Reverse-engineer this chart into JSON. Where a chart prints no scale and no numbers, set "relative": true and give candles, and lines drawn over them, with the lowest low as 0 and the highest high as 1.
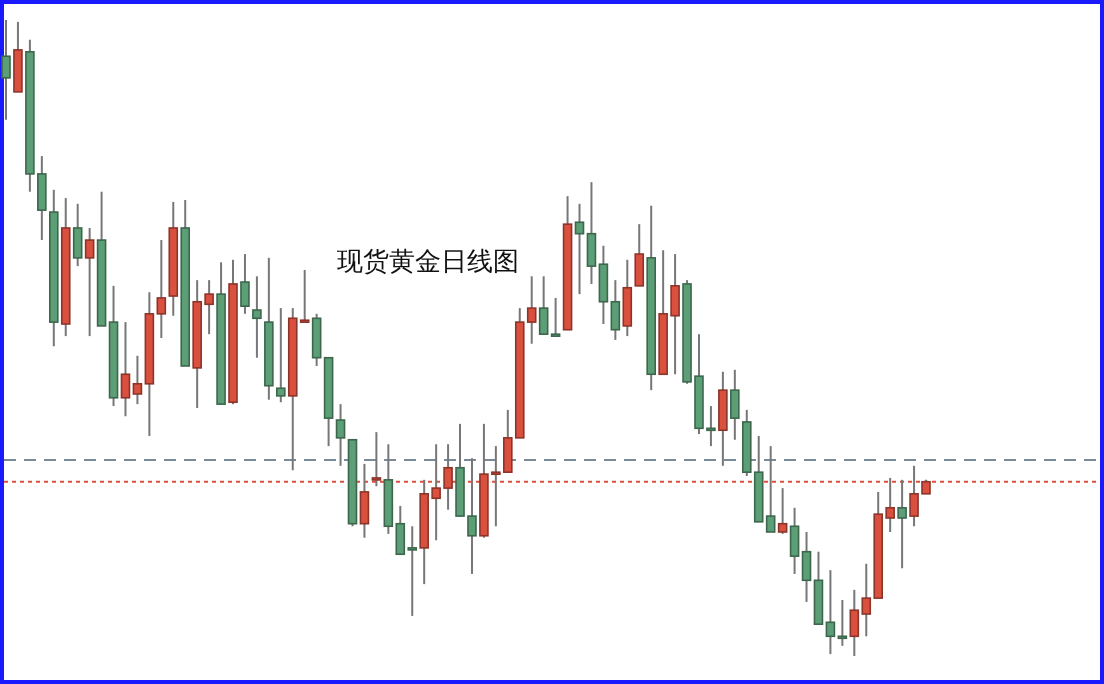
{
  "chart_data": {
    "type": "candlestick",
    "title": "现货黄金日线图",
    "relative": true,
    "categories": [
      null,
      null,
      null,
      null,
      null,
      null,
      null,
      null,
      null,
      null,
      null,
      null,
      null,
      null,
      null,
      null,
      null,
      null,
      null,
      null,
      null,
      null,
      null,
      null,
      null,
      null,
      null,
      null,
      null,
      null,
      null,
      null,
      null,
      null,
      null,
      null,
      null,
      null,
      null,
      null,
      null,
      null,
      null,
      null,
      null,
      null,
      null,
      null,
      null,
      null,
      null,
      null,
      null,
      null,
      null,
      null,
      null,
      null,
      null,
      null,
      null,
      null,
      null,
      null,
      null,
      null,
      null,
      null,
      null,
      null,
      null,
      null,
      null,
      null,
      null,
      null,
      null,
      null
    ],
    "ohlc": [
      [
        0.943,
        1,
        0.843,
        0.909
      ],
      [
        0.887,
        0.997,
        0.887,
        0.953
      ],
      [
        0.95,
        0.969,
        0.73,
        0.758
      ],
      [
        0.758,
        0.786,
        0.654,
        0.701
      ],
      [
        0.698,
        0.733,
        0.487,
        0.525
      ],
      [
        0.522,
        0.72,
        0.503,
        0.673
      ],
      [
        0.673,
        0.711,
        0.613,
        0.626
      ],
      [
        0.626,
        0.673,
        0.503,
        0.654
      ],
      [
        0.654,
        0.73,
        0.519,
        0.519
      ],
      [
        0.525,
        0.582,
        0.393,
        0.406
      ],
      [
        0.406,
        0.525,
        0.377,
        0.443
      ],
      [
        0.412,
        0.472,
        0.396,
        0.428
      ],
      [
        0.428,
        0.572,
        0.346,
        0.538
      ],
      [
        0.538,
        0.654,
        0.5,
        0.563
      ],
      [
        0.566,
        0.714,
        0.535,
        0.673
      ],
      [
        0.673,
        0.717,
        0.456,
        0.456
      ],
      [
        0.453,
        0.591,
        0.39,
        0.557
      ],
      [
        0.553,
        0.591,
        0.506,
        0.569
      ],
      [
        0.569,
        0.619,
        0.396,
        0.396
      ],
      [
        0.399,
        0.623,
        0.396,
        0.585
      ],
      [
        0.588,
        0.632,
        0.538,
        0.55
      ],
      [
        0.544,
        0.597,
        0.469,
        0.531
      ],
      [
        0.525,
        0.626,
        0.403,
        0.425
      ],
      [
        0.421,
        0.547,
        0.399,
        0.409
      ],
      [
        0.409,
        0.547,
        0.292,
        0.531
      ],
      [
        0.528,
        0.607,
        0.525,
        0.528
      ],
      [
        0.531,
        0.538,
        0.456,
        0.469
      ],
      [
        0.469,
        0.469,
        0.33,
        0.374
      ],
      [
        0.371,
        0.396,
        0.299,
        0.343
      ],
      [
        0.34,
        0.34,
        0.204,
        0.208
      ],
      [
        0.208,
        0.302,
        0.186,
        0.258
      ],
      [
        0.277,
        0.352,
        0.267,
        0.28
      ],
      [
        0.277,
        0.333,
        0.192,
        0.204
      ],
      [
        0.208,
        0.236,
        0.16,
        0.16
      ],
      [
        0.17,
        0.204,
        0.063,
        0.17
      ],
      [
        0.17,
        0.277,
        0.113,
        0.255
      ],
      [
        0.248,
        0.333,
        0.182,
        0.264
      ],
      [
        0.264,
        0.333,
        0.23,
        0.296
      ],
      [
        0.296,
        0.365,
        0.22,
        0.22
      ],
      [
        0.22,
        0.311,
        0.129,
        0.189
      ],
      [
        0.189,
        0.365,
        0.186,
        0.286
      ],
      [
        0.289,
        0.33,
        0.204,
        0.289
      ],
      [
        0.289,
        0.387,
        0.289,
        0.343
      ],
      [
        0.343,
        0.547,
        0.343,
        0.525
      ],
      [
        0.525,
        0.597,
        0.491,
        0.547
      ],
      [
        0.547,
        0.597,
        0.506,
        0.506
      ],
      [
        0.506,
        0.563,
        0.503,
        0.506
      ],
      [
        0.513,
        0.723,
        0.513,
        0.679
      ],
      [
        0.682,
        0.711,
        0.569,
        0.664
      ],
      [
        0.664,
        0.745,
        0.585,
        0.613
      ],
      [
        0.616,
        0.645,
        0.522,
        0.557
      ],
      [
        0.557,
        0.591,
        0.497,
        0.513
      ],
      [
        0.519,
        0.623,
        0.503,
        0.579
      ],
      [
        0.582,
        0.679,
        0.582,
        0.632
      ],
      [
        0.626,
        0.708,
        0.418,
        0.443
      ],
      [
        0.443,
        0.638,
        0.443,
        0.538
      ],
      [
        0.535,
        0.632,
        0.443,
        0.582
      ],
      [
        0.585,
        0.591,
        0.428,
        0.431
      ],
      [
        0.44,
        0.506,
        0.349,
        0.358
      ],
      [
        0.358,
        0.393,
        0.33,
        0.358
      ],
      [
        0.355,
        0.447,
        0.299,
        0.418
      ],
      [
        0.418,
        0.45,
        0.34,
        0.374
      ],
      [
        0.368,
        0.387,
        0.283,
        0.289
      ],
      [
        0.289,
        0.346,
        0.211,
        0.211
      ],
      [
        0.22,
        0.33,
        0.195,
        0.195
      ],
      [
        0.195,
        0.264,
        0.192,
        0.208
      ],
      [
        0.204,
        0.233,
        0.129,
        0.157
      ],
      [
        0.164,
        0.195,
        0.085,
        0.119
      ],
      [
        0.119,
        0.164,
        0.05,
        0.05
      ],
      [
        0.053,
        0.135,
        0.003,
        0.031
      ],
      [
        0.031,
        0.088,
        0.016,
        0.031
      ],
      [
        0.031,
        0.104,
        0,
        0.072
      ],
      [
        0.066,
        0.145,
        0.031,
        0.091
      ],
      [
        0.091,
        0.258,
        0.091,
        0.223
      ],
      [
        0.217,
        0.28,
        0.195,
        0.233
      ],
      [
        0.233,
        0.277,
        0.138,
        0.217
      ],
      [
        0.22,
        0.299,
        0.204,
        0.255
      ],
      [
        0.255,
        0.277,
        0.255,
        0.274
      ]
    ],
    "colors": [
      "#5c9e76",
      "#d9503f",
      "#5c9e76",
      "#5c9e76",
      "#5c9e76",
      "#d9503f",
      "#5c9e76",
      "#d9503f",
      "#5c9e76",
      "#5c9e76",
      "#d9503f",
      "#d9503f",
      "#d9503f",
      "#d9503f",
      "#d9503f",
      "#5c9e76",
      "#d9503f",
      "#d9503f",
      "#5c9e76",
      "#d9503f",
      "#5c9e76",
      "#5c9e76",
      "#5c9e76",
      "#5c9e76",
      "#d9503f",
      "#d9503f",
      "#5c9e76",
      "#5c9e76",
      "#5c9e76",
      "#5c9e76",
      "#d9503f",
      "#d9503f",
      "#5c9e76",
      "#5c9e76",
      "#5c9e76",
      "#d9503f",
      "#d9503f",
      "#d9503f",
      "#5c9e76",
      "#5c9e76",
      "#d9503f",
      "#d9503f",
      "#d9503f",
      "#d9503f",
      "#d9503f",
      "#5c9e76",
      "#5c9e76",
      "#d9503f",
      "#5c9e76",
      "#5c9e76",
      "#5c9e76",
      "#5c9e76",
      "#d9503f",
      "#d9503f",
      "#5c9e76",
      "#d9503f",
      "#d9503f",
      "#5c9e76",
      "#5c9e76",
      "#5c9e76",
      "#d9503f",
      "#5c9e76",
      "#5c9e76",
      "#5c9e76",
      "#5c9e76",
      "#d9503f",
      "#5c9e76",
      "#5c9e76",
      "#5c9e76",
      "#5c9e76",
      "#5c9e76",
      "#d9503f",
      "#d9503f",
      "#d9503f",
      "#d9503f",
      "#5c9e76",
      "#d9503f",
      "#d9503f"
    ],
    "ref_lines": [
      {
        "axis": "y",
        "value": 0.308,
        "color": "#7a8a99",
        "line_style": "dashed"
      },
      {
        "axis": "y",
        "value": 0.274,
        "color": "#d9503f",
        "line_style": "dotted"
      }
    ]
  }
}
